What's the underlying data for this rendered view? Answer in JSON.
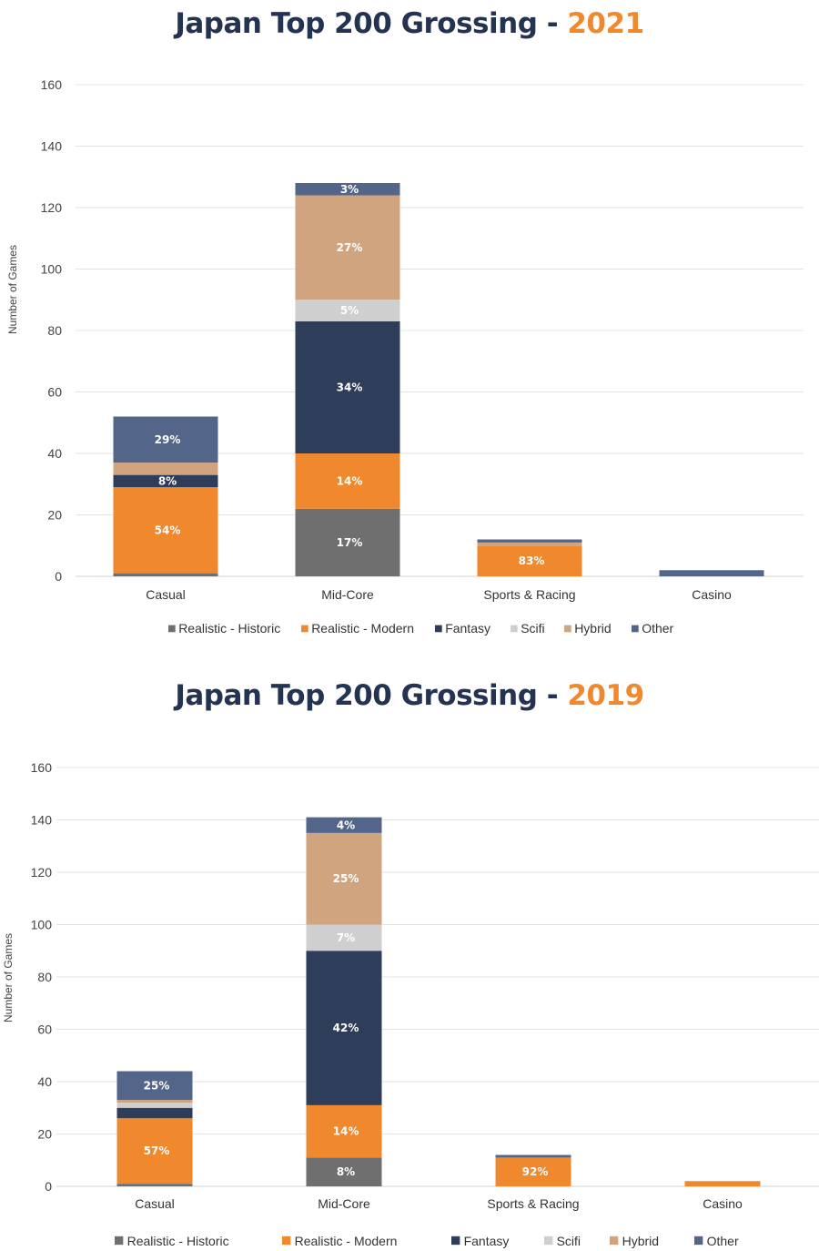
{
  "colors": {
    "Realistic - Historic": "#6f6f6f",
    "Realistic - Modern": "#f0882e",
    "Fantasy": "#2e3d59",
    "Scifi": "#cfcfcf",
    "Hybrid": "#cfa47f",
    "Other": "#53668a"
  },
  "chart_data": [
    {
      "type": "bar",
      "stacked": true,
      "title": "Japan Top 200 Grossing - ",
      "title_year": "2021",
      "ylabel": "Number of Games",
      "ylim": [
        0,
        160
      ],
      "yticks": [
        0,
        20,
        40,
        60,
        80,
        100,
        120,
        140,
        160
      ],
      "grid": true,
      "legend": "bottom",
      "categories": [
        "Casual",
        "Mid-Core",
        "Sports & Racing",
        "Casino"
      ],
      "series": [
        {
          "name": "Realistic - Historic",
          "values": [
            1,
            22,
            0,
            0
          ],
          "labels": [
            "",
            "17%",
            "",
            ""
          ]
        },
        {
          "name": "Realistic - Modern",
          "values": [
            28,
            18,
            10,
            0
          ],
          "labels": [
            "54%",
            "14%",
            "83%",
            ""
          ]
        },
        {
          "name": "Fantasy",
          "values": [
            4,
            43,
            0,
            0
          ],
          "labels": [
            "8%",
            "34%",
            "",
            ""
          ]
        },
        {
          "name": "Scifi",
          "values": [
            0,
            7,
            0,
            0
          ],
          "labels": [
            "",
            "5%",
            "",
            ""
          ]
        },
        {
          "name": "Hybrid",
          "values": [
            4,
            34,
            1,
            0
          ],
          "labels": [
            "",
            "27%",
            "",
            ""
          ]
        },
        {
          "name": "Other",
          "values": [
            15,
            4,
            1,
            2
          ],
          "labels": [
            "29%",
            "3%",
            "",
            ""
          ]
        }
      ]
    },
    {
      "type": "bar",
      "stacked": true,
      "title": "Japan Top 200 Grossing - ",
      "title_year": "2019",
      "ylabel": "Number of Games",
      "ylim": [
        0,
        160
      ],
      "yticks": [
        0,
        20,
        40,
        60,
        80,
        100,
        120,
        140,
        160
      ],
      "grid": true,
      "legend": "bottom",
      "categories": [
        "Casual",
        "Mid-Core",
        "Sports & Racing",
        "Casino"
      ],
      "series": [
        {
          "name": "Realistic - Historic",
          "values": [
            1,
            11,
            0,
            0
          ],
          "labels": [
            "",
            "8%",
            "",
            ""
          ]
        },
        {
          "name": "Realistic - Modern",
          "values": [
            25,
            20,
            11,
            2
          ],
          "labels": [
            "57%",
            "14%",
            "92%",
            ""
          ]
        },
        {
          "name": "Fantasy",
          "values": [
            4,
            59,
            0,
            0
          ],
          "labels": [
            "",
            "42%",
            "",
            ""
          ]
        },
        {
          "name": "Scifi",
          "values": [
            2,
            10,
            0,
            0
          ],
          "labels": [
            "",
            "7%",
            "",
            ""
          ]
        },
        {
          "name": "Hybrid",
          "values": [
            1,
            35,
            0,
            0
          ],
          "labels": [
            "",
            "25%",
            "",
            ""
          ]
        },
        {
          "name": "Other",
          "values": [
            11,
            6,
            1,
            0
          ],
          "labels": [
            "25%",
            "4%",
            "",
            ""
          ]
        }
      ]
    }
  ]
}
